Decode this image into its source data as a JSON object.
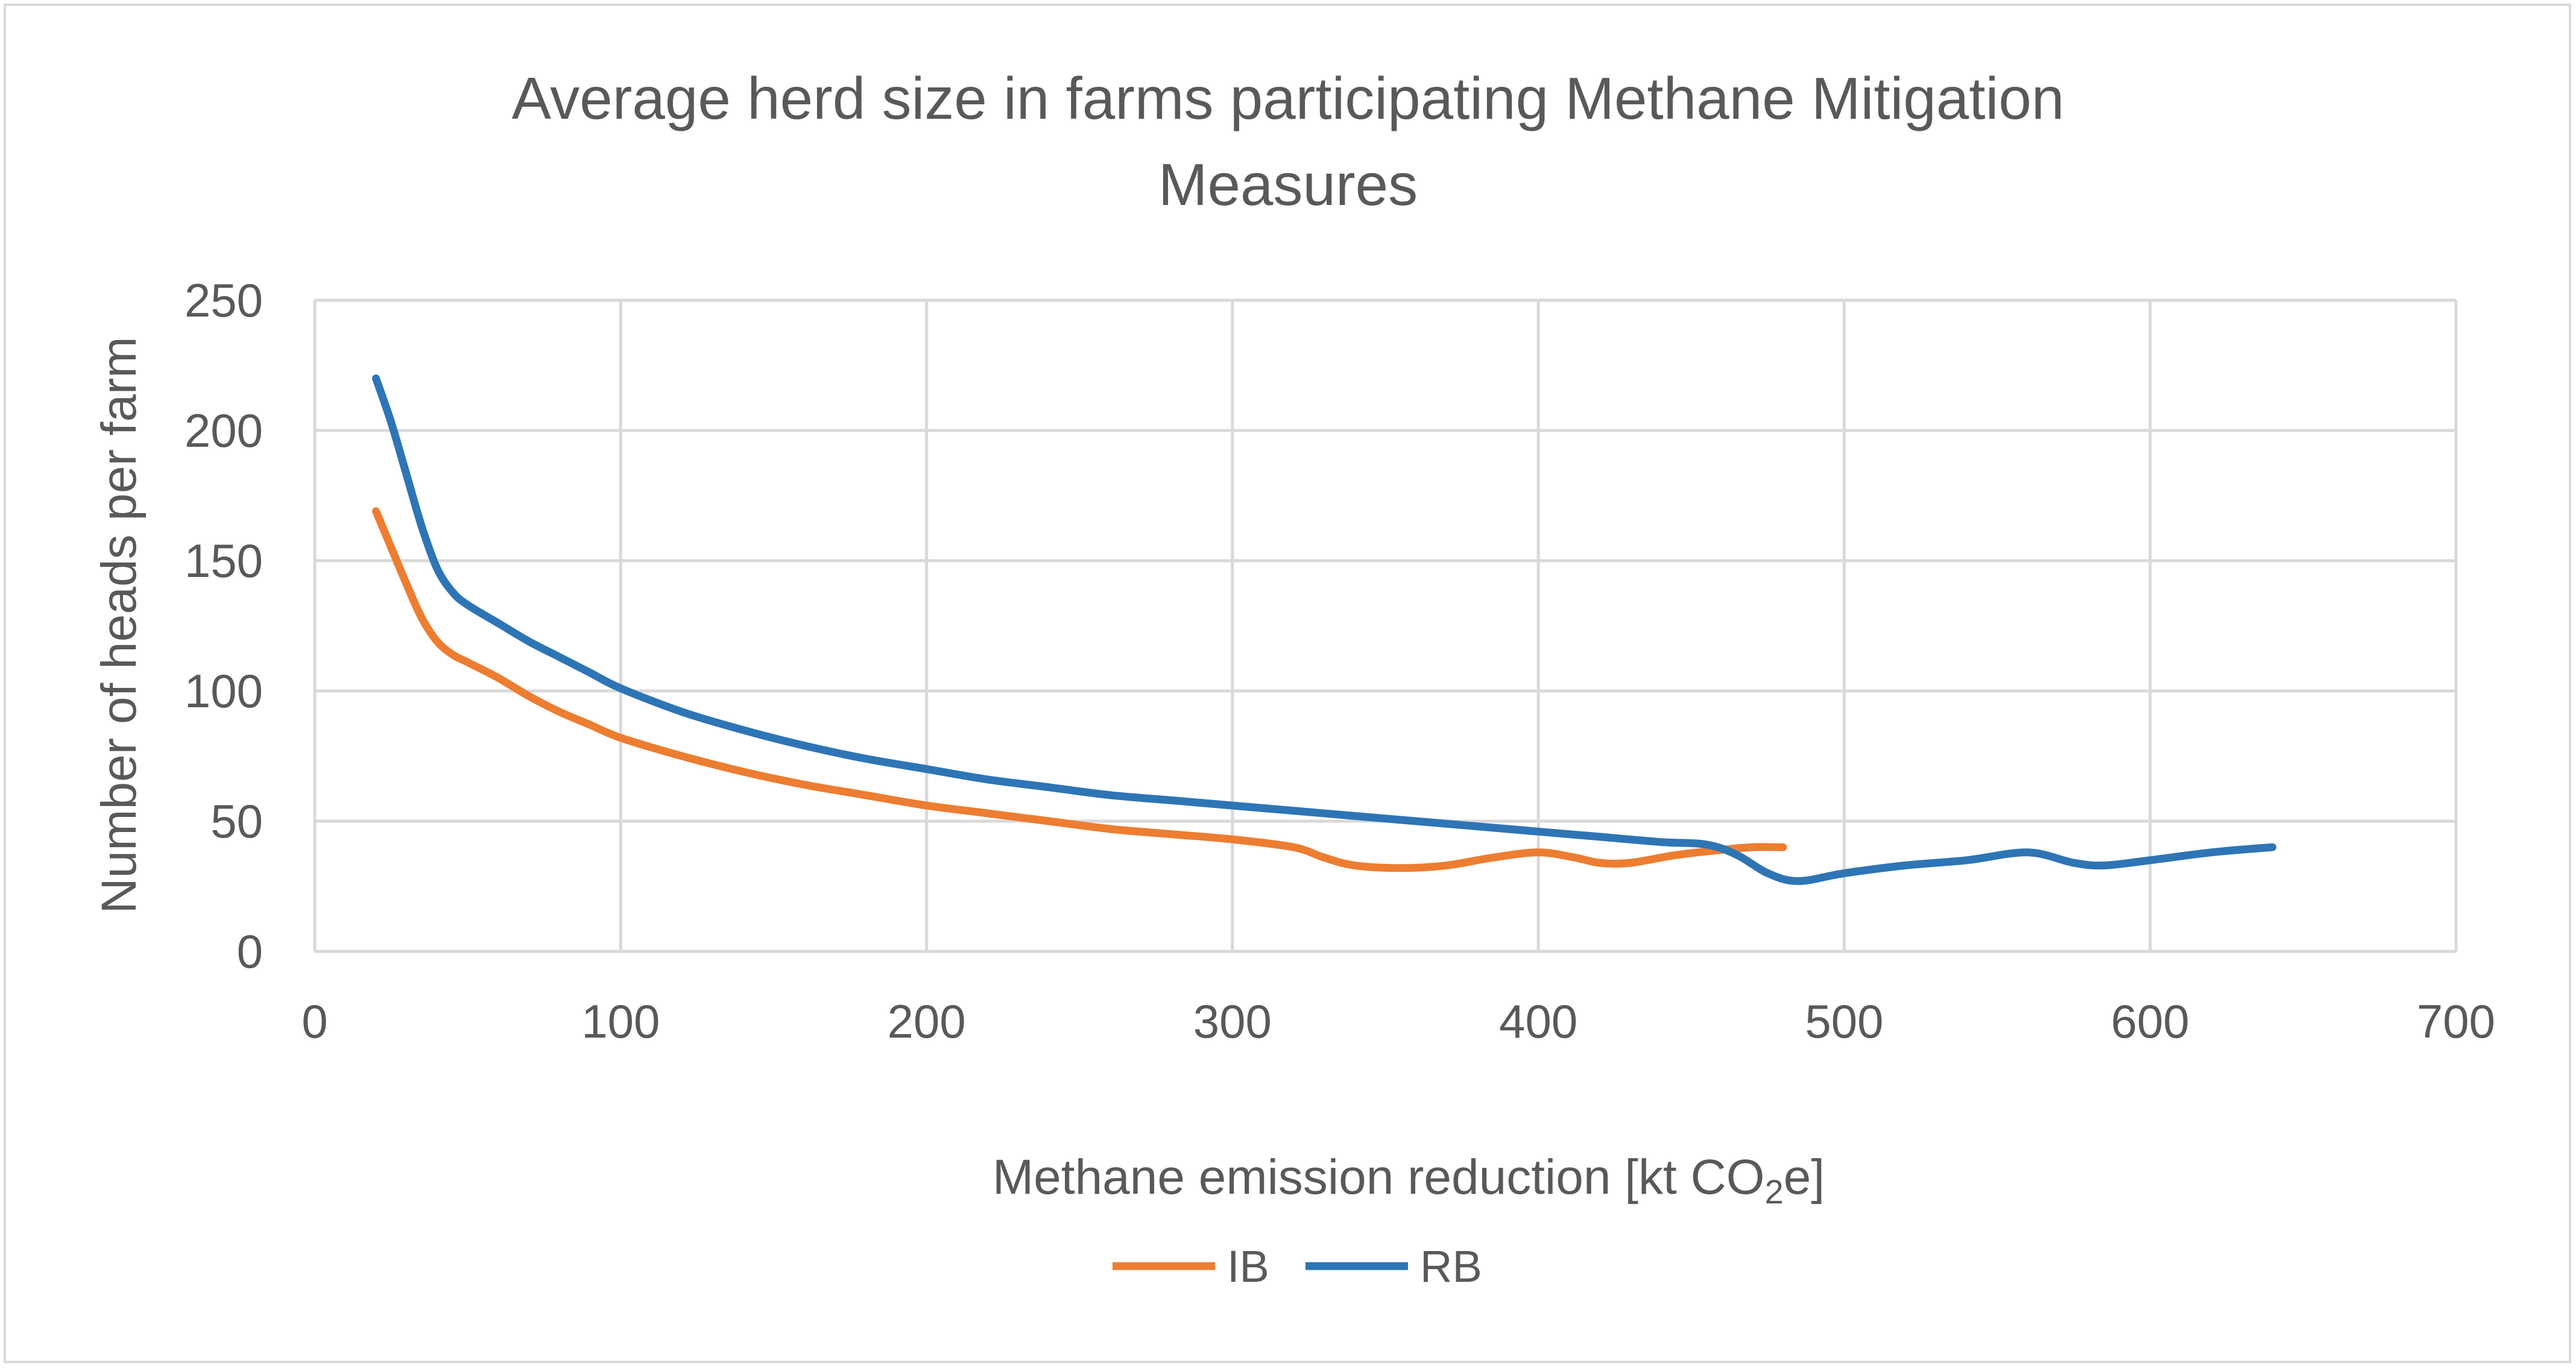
{
  "chart_data": {
    "type": "line",
    "title_line1": "Average herd size in farms participating Methane Mitigation",
    "title_line2": "Measures",
    "xlabel_main": "Methane emission reduction [kt CO",
    "xlabel_sub": "2",
    "xlabel_end": "e]",
    "ylabel": "Number of heads per farm",
    "xlim": [
      0,
      700
    ],
    "ylim": [
      0,
      250
    ],
    "xticks": [
      0,
      100,
      200,
      300,
      400,
      500,
      600,
      700
    ],
    "yticks": [
      0,
      50,
      100,
      150,
      200,
      250
    ],
    "grid": true,
    "legend_position": "bottom",
    "series": [
      {
        "name": "IB",
        "color": "#ED7D31",
        "points": [
          [
            20,
            169
          ],
          [
            25,
            155
          ],
          [
            30,
            141
          ],
          [
            35,
            128
          ],
          [
            40,
            119
          ],
          [
            45,
            114
          ],
          [
            50,
            111
          ],
          [
            60,
            105
          ],
          [
            70,
            98
          ],
          [
            80,
            92
          ],
          [
            90,
            87
          ],
          [
            100,
            82
          ],
          [
            120,
            75
          ],
          [
            140,
            69
          ],
          [
            160,
            64
          ],
          [
            180,
            60
          ],
          [
            200,
            56
          ],
          [
            220,
            53
          ],
          [
            240,
            50
          ],
          [
            260,
            47
          ],
          [
            280,
            45
          ],
          [
            300,
            43
          ],
          [
            320,
            40
          ],
          [
            330,
            36
          ],
          [
            340,
            33
          ],
          [
            355,
            32
          ],
          [
            370,
            33
          ],
          [
            385,
            36
          ],
          [
            400,
            38
          ],
          [
            412,
            36
          ],
          [
            420,
            34
          ],
          [
            430,
            34
          ],
          [
            445,
            37
          ],
          [
            460,
            39
          ],
          [
            470,
            40
          ],
          [
            480,
            40
          ]
        ]
      },
      {
        "name": "RB",
        "color": "#2E75B6",
        "points": [
          [
            20,
            220
          ],
          [
            25,
            203
          ],
          [
            30,
            183
          ],
          [
            35,
            163
          ],
          [
            40,
            147
          ],
          [
            45,
            138
          ],
          [
            50,
            133
          ],
          [
            60,
            126
          ],
          [
            70,
            119
          ],
          [
            80,
            113
          ],
          [
            90,
            107
          ],
          [
            100,
            101
          ],
          [
            120,
            92
          ],
          [
            140,
            85
          ],
          [
            160,
            79
          ],
          [
            180,
            74
          ],
          [
            200,
            70
          ],
          [
            220,
            66
          ],
          [
            240,
            63
          ],
          [
            260,
            60
          ],
          [
            280,
            58
          ],
          [
            300,
            56
          ],
          [
            320,
            54
          ],
          [
            340,
            52
          ],
          [
            360,
            50
          ],
          [
            380,
            48
          ],
          [
            400,
            46
          ],
          [
            420,
            44
          ],
          [
            440,
            42
          ],
          [
            455,
            41
          ],
          [
            465,
            37
          ],
          [
            475,
            30
          ],
          [
            485,
            27
          ],
          [
            500,
            30
          ],
          [
            520,
            33
          ],
          [
            540,
            35
          ],
          [
            560,
            38
          ],
          [
            575,
            34
          ],
          [
            585,
            33
          ],
          [
            600,
            35
          ],
          [
            620,
            38
          ],
          [
            640,
            40
          ]
        ]
      }
    ]
  }
}
